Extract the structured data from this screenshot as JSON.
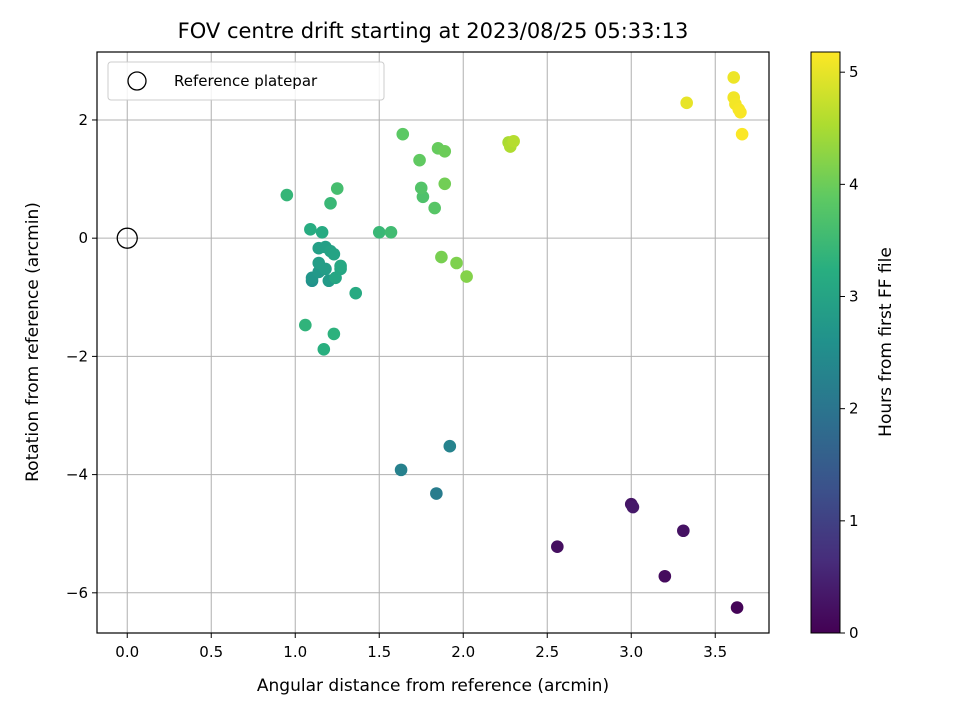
{
  "chart_data": {
    "type": "scatter",
    "title": "FOV centre drift starting at 2023/08/25 05:33:13",
    "xlabel": "Angular distance from reference (arcmin)",
    "ylabel": "Rotation from reference (arcmin)",
    "xlim": [
      -0.18,
      3.82
    ],
    "ylim": [
      -6.68,
      3.15
    ],
    "xticks": [
      0.0,
      0.5,
      1.0,
      1.5,
      2.0,
      2.5,
      3.0,
      3.5
    ],
    "xtick_labels": [
      "0.0",
      "0.5",
      "1.0",
      "1.5",
      "2.0",
      "2.5",
      "3.0",
      "3.5"
    ],
    "yticks": [
      -6,
      -4,
      -2,
      0,
      2
    ],
    "ytick_labels": [
      "−6",
      "−4",
      "−2",
      "0",
      "2"
    ],
    "grid": true,
    "legend": {
      "placement": "top-left",
      "entries": [
        "Reference platepar"
      ]
    },
    "reference_point": {
      "x": 0.0,
      "y": 0.0,
      "label": "Reference platepar"
    },
    "colorbar": {
      "label": "Hours from first FF file",
      "range": [
        0,
        5.18
      ],
      "ticks": [
        0,
        1,
        2,
        3,
        4,
        5
      ],
      "tick_labels": [
        "0",
        "1",
        "2",
        "3",
        "4",
        "5"
      ],
      "colormap": "viridis"
    },
    "points": [
      {
        "x": 3.63,
        "y": -6.25,
        "h": 0.05
      },
      {
        "x": 3.2,
        "y": -5.72,
        "h": 0.15
      },
      {
        "x": 2.56,
        "y": -5.22,
        "h": 0.2
      },
      {
        "x": 3.31,
        "y": -4.95,
        "h": 0.25
      },
      {
        "x": 3.0,
        "y": -4.5,
        "h": 0.3
      },
      {
        "x": 3.01,
        "y": -4.55,
        "h": 0.35
      },
      {
        "x": 1.84,
        "y": -4.32,
        "h": 2.15
      },
      {
        "x": 1.63,
        "y": -3.92,
        "h": 2.25
      },
      {
        "x": 1.92,
        "y": -3.52,
        "h": 2.3
      },
      {
        "x": 1.1,
        "y": -0.72,
        "h": 2.6
      },
      {
        "x": 1.1,
        "y": -0.67,
        "h": 2.7
      },
      {
        "x": 1.14,
        "y": -0.57,
        "h": 2.75
      },
      {
        "x": 1.2,
        "y": -0.72,
        "h": 2.8
      },
      {
        "x": 1.18,
        "y": -0.52,
        "h": 2.85
      },
      {
        "x": 1.14,
        "y": -0.42,
        "h": 2.85
      },
      {
        "x": 1.14,
        "y": -0.17,
        "h": 2.9
      },
      {
        "x": 1.18,
        "y": -0.15,
        "h": 2.9
      },
      {
        "x": 1.21,
        "y": -0.22,
        "h": 2.95
      },
      {
        "x": 1.23,
        "y": -0.27,
        "h": 3.0
      },
      {
        "x": 1.24,
        "y": -0.67,
        "h": 3.05
      },
      {
        "x": 1.27,
        "y": -0.52,
        "h": 3.05
      },
      {
        "x": 1.27,
        "y": -0.47,
        "h": 3.1
      },
      {
        "x": 1.36,
        "y": -0.93,
        "h": 3.15
      },
      {
        "x": 1.16,
        "y": 0.1,
        "h": 3.15
      },
      {
        "x": 1.09,
        "y": 0.15,
        "h": 3.2
      },
      {
        "x": 1.17,
        "y": -1.88,
        "h": 3.25
      },
      {
        "x": 1.23,
        "y": -1.62,
        "h": 3.3
      },
      {
        "x": 1.06,
        "y": -1.47,
        "h": 3.35
      },
      {
        "x": 0.95,
        "y": 0.73,
        "h": 3.4
      },
      {
        "x": 1.21,
        "y": 0.59,
        "h": 3.45
      },
      {
        "x": 1.5,
        "y": 0.1,
        "h": 3.45
      },
      {
        "x": 1.57,
        "y": 0.1,
        "h": 3.55
      },
      {
        "x": 1.25,
        "y": 0.84,
        "h": 3.6
      },
      {
        "x": 1.76,
        "y": 0.7,
        "h": 3.7
      },
      {
        "x": 1.75,
        "y": 0.85,
        "h": 3.75
      },
      {
        "x": 1.83,
        "y": 0.51,
        "h": 3.8
      },
      {
        "x": 1.64,
        "y": 1.76,
        "h": 3.85
      },
      {
        "x": 1.74,
        "y": 1.32,
        "h": 3.9
      },
      {
        "x": 1.85,
        "y": 1.52,
        "h": 3.95
      },
      {
        "x": 1.89,
        "y": 1.47,
        "h": 4.0
      },
      {
        "x": 1.89,
        "y": 0.92,
        "h": 4.05
      },
      {
        "x": 1.87,
        "y": -0.32,
        "h": 4.1
      },
      {
        "x": 1.96,
        "y": -0.42,
        "h": 4.15
      },
      {
        "x": 2.02,
        "y": -0.65,
        "h": 4.2
      },
      {
        "x": 2.27,
        "y": 1.62,
        "h": 4.5
      },
      {
        "x": 2.28,
        "y": 1.55,
        "h": 4.55
      },
      {
        "x": 2.3,
        "y": 1.64,
        "h": 4.6
      },
      {
        "x": 3.33,
        "y": 2.29,
        "h": 5.0
      },
      {
        "x": 3.61,
        "y": 2.72,
        "h": 5.05
      },
      {
        "x": 3.61,
        "y": 2.38,
        "h": 5.08
      },
      {
        "x": 3.62,
        "y": 2.27,
        "h": 5.1
      },
      {
        "x": 3.64,
        "y": 2.18,
        "h": 5.12
      },
      {
        "x": 3.65,
        "y": 2.13,
        "h": 5.14
      },
      {
        "x": 3.66,
        "y": 1.76,
        "h": 5.16
      }
    ]
  }
}
